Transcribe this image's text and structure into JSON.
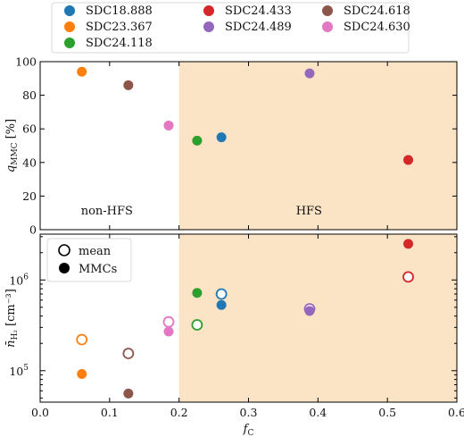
{
  "colors": {
    "hfs_shade": "#fbe3c6",
    "axis": "#000000"
  },
  "chart_data": {
    "type": "scatter",
    "x_axis": {
      "label": "f",
      "label_sub": "C",
      "range": [
        0.0,
        0.6
      ],
      "ticks": [
        0.0,
        0.1,
        0.2,
        0.3,
        0.4,
        0.5,
        0.6
      ],
      "tick_labels": [
        "0.0",
        "0.1",
        "0.2",
        "0.3",
        "0.4",
        "0.5",
        "0.6"
      ]
    },
    "shaded_region": {
      "from": 0.2,
      "to": 0.6,
      "color": "#fbe3c6"
    },
    "legend": {
      "placement": "top",
      "entries": [
        {
          "name": "SDC18.888",
          "color": "#1f77b4"
        },
        {
          "name": "SDC24.433",
          "color": "#d62728"
        },
        {
          "name": "SDC24.618",
          "color": "#8c564b"
        },
        {
          "name": "SDC23.367",
          "color": "#ff7f0e"
        },
        {
          "name": "SDC24.489",
          "color": "#9467bd"
        },
        {
          "name": "SDC24.630",
          "color": "#e377c2"
        },
        {
          "name": "SDC24.118",
          "color": "#2ca02c"
        }
      ]
    },
    "panels": [
      {
        "ylabel": "q",
        "ylabel_sub": "MMC",
        "ylabel_unit": "[%]",
        "ylim": [
          0,
          100
        ],
        "yticks": [
          0,
          20,
          40,
          60,
          80,
          100
        ],
        "ytick_labels": [
          "0",
          "20",
          "40",
          "60",
          "80",
          "100"
        ],
        "region_labels": {
          "left": "non-HFS",
          "right": "HFS"
        },
        "series": [
          {
            "name": "SDC23.367",
            "color": "#ff7f0e",
            "x": 0.06,
            "y": 94
          },
          {
            "name": "SDC24.618",
            "color": "#8c564b",
            "x": 0.127,
            "y": 86
          },
          {
            "name": "SDC24.630",
            "color": "#e377c2",
            "x": 0.185,
            "y": 62
          },
          {
            "name": "SDC24.118",
            "color": "#2ca02c",
            "x": 0.226,
            "y": 53
          },
          {
            "name": "SDC18.888",
            "color": "#1f77b4",
            "x": 0.261,
            "y": 55
          },
          {
            "name": "SDC24.489",
            "color": "#9467bd",
            "x": 0.388,
            "y": 93
          },
          {
            "name": "SDC24.433",
            "color": "#d62728",
            "x": 0.53,
            "y": 41.5
          }
        ]
      },
      {
        "ylabel": "n̄",
        "ylabel_sub": "H₂",
        "ylabel_unit": "[cm⁻³]",
        "yscale": "log",
        "ylim": [
          45000,
          3200000
        ],
        "major_ticks": [
          100000,
          1000000
        ],
        "major_tick_labels": [
          [
            "10",
            "5"
          ],
          [
            "10",
            "6"
          ]
        ],
        "minor_ticks": [
          50000,
          60000,
          70000,
          80000,
          90000,
          200000,
          300000,
          400000,
          500000,
          600000,
          700000,
          800000,
          900000,
          2000000,
          3000000
        ],
        "marker_legend": {
          "placement": "top-left",
          "entries": [
            "mean",
            "MMCs"
          ]
        },
        "series": [
          {
            "name": "SDC23.367",
            "color": "#ff7f0e",
            "x": 0.06,
            "mean": 220000,
            "mmc": 92000
          },
          {
            "name": "SDC24.618",
            "color": "#8c564b",
            "x": 0.127,
            "mean": 155000,
            "mmc": 56000
          },
          {
            "name": "SDC24.630",
            "color": "#e377c2",
            "x": 0.185,
            "mean": 345000,
            "mmc": 270000
          },
          {
            "name": "SDC24.118",
            "color": "#2ca02c",
            "x": 0.226,
            "mean": 320000,
            "mmc": 720000
          },
          {
            "name": "SDC18.888",
            "color": "#1f77b4",
            "x": 0.261,
            "mean": 700000,
            "mmc": 530000
          },
          {
            "name": "SDC24.489",
            "color": "#9467bd",
            "x": 0.388,
            "mean": 480000,
            "mmc": 455000
          },
          {
            "name": "SDC24.433",
            "color": "#d62728",
            "x": 0.53,
            "mean": 1080000,
            "mmc": 2500000
          }
        ]
      }
    ]
  }
}
